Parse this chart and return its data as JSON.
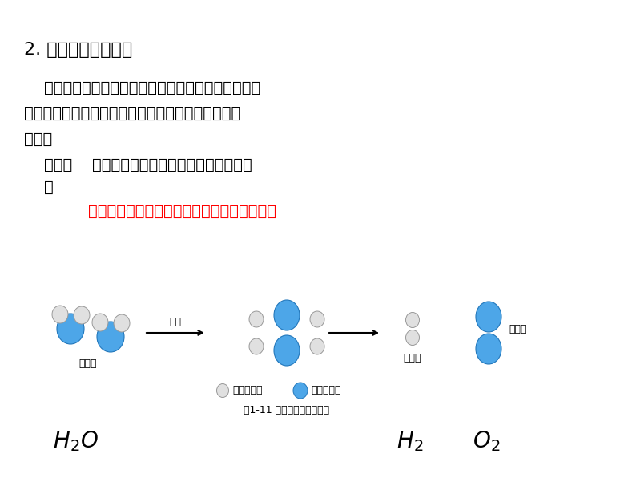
{
  "bg_color": "#ffffff",
  "title_text": "2. 化学式书写依据：",
  "para1": "    化学式不能凭空想象。先通过实验确定物质的组成，",
  "para2": "然后按国际通用规则书写。一种物质只用一个化学式",
  "para3": "表示。",
  "think_bold": "思考：",
  "think_rest": "为什么一种物质只用一个化学式表示呢",
  "think_q": "？",
  "answer_text": "一种物质是纯净物，它的组成是固定不变的。",
  "answer_color": "#ff0000",
  "label_shuifenzi": "水分子",
  "label_qingfenzi": "氢分子",
  "label_yangfenzi": "氧分子",
  "label_tongdian": "通电",
  "label_legend": "图1-11 水电解的过程示意图",
  "label_dai_qing": "代表氢原子",
  "label_dai_yang": "代表氧原子",
  "blue_color": "#4da6e8",
  "white_atom_color": "#e0e0e0",
  "text_color": "#000000"
}
